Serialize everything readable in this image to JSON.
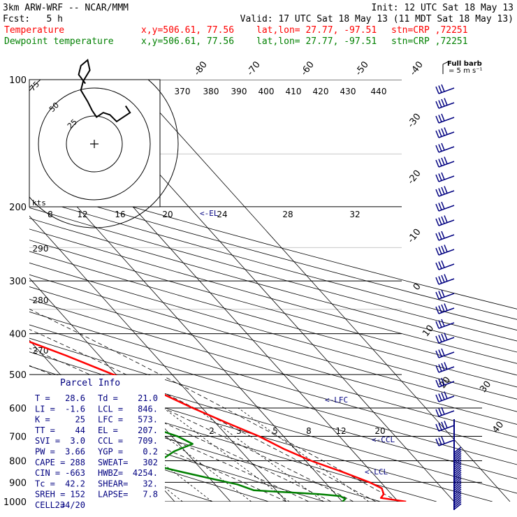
{
  "header": {
    "model": "3km ARW-WRF -- NCAR/MMM",
    "init": "Init: 12 UTC Sat 18 May 13",
    "fcst_label": "Fcst:",
    "fcst_value": "5 h",
    "valid": "Valid: 17 UTC Sat 18 May 13 (11 MDT Sat 18 May 13)",
    "line_temp": {
      "label": "Temperature",
      "xy": "x,y=506.61, 77.56",
      "latlon": "lat,lon= 27.77, -97.51",
      "stn": "stn=CRP ,72251"
    },
    "line_dew": {
      "label": "Dewpoint temperature",
      "xy": "x,y=506.61, 77.56",
      "latlon": "lat,lon= 27.77, -97.51",
      "stn": "stn=CRP ,72251"
    }
  },
  "colors": {
    "temperature": "#ff0000",
    "dewpoint": "#008000",
    "text": "#000000",
    "blue_text": "#000080",
    "grid_light": "#c8c8c8"
  },
  "barb_legend": {
    "title": "Full barb",
    "units": "= 5 m s⁻¹"
  },
  "parcel_info": {
    "title": "Parcel Info",
    "rows": [
      [
        "T  =",
        "28.6",
        "Td =",
        "21.0"
      ],
      [
        "LI =",
        "-1.6",
        "LCL =",
        "846."
      ],
      [
        "K  =",
        "25",
        "LFC =",
        "573."
      ],
      [
        "TT =",
        "44",
        "EL =",
        "207."
      ],
      [
        "SVI =",
        "3.0",
        "CCL =",
        "709."
      ],
      [
        "PW =",
        "3.66",
        "YGP =",
        "0.2"
      ],
      [
        "CAPE =",
        "288",
        "SWEAT=",
        "302"
      ],
      [
        "CIN =",
        "-663",
        "HWBZ=",
        "4254."
      ],
      [
        "Tc =",
        "42.2",
        "SHEAR=",
        "32."
      ],
      [
        "SREH =",
        "152",
        "LAPSE=",
        "7.8"
      ],
      [
        "CELL =",
        "234/20",
        "",
        ""
      ]
    ]
  },
  "annotations": {
    "el": "<-EL",
    "lfc": "<-LFC",
    "ccl": "<-CCL",
    "lcl": "<-LCL"
  },
  "hodograph": {
    "units": "kts",
    "ring_labels": [
      "25",
      "50",
      "75"
    ],
    "speed_ticks": [
      "8",
      "12",
      "16",
      "20",
      "24",
      "28",
      "32"
    ],
    "trace_kts": [
      [
        -8,
        54
      ],
      [
        -14,
        62
      ],
      [
        -12,
        70
      ],
      [
        -6,
        75
      ],
      [
        -4,
        66
      ],
      [
        -10,
        56
      ],
      [
        -12,
        48
      ],
      [
        -6,
        38
      ],
      [
        -2,
        30
      ],
      [
        2,
        24
      ],
      [
        8,
        28
      ],
      [
        14,
        26
      ],
      [
        20,
        20
      ],
      [
        26,
        24
      ],
      [
        32,
        28
      ],
      [
        28,
        34
      ]
    ]
  },
  "chart_data": {
    "type": "line",
    "title": "",
    "ylabel": "",
    "xlabel": "",
    "pressure_levels": [
      "100",
      "200",
      "300",
      "400",
      "500",
      "600",
      "700",
      "800",
      "900",
      "1000"
    ],
    "isotherm_labels": [
      "-80",
      "-70",
      "-60",
      "-50",
      "-40",
      "-30",
      "-20",
      "-10",
      "0",
      "10",
      "20",
      "30",
      "40"
    ],
    "theta_labels": [
      "370",
      "380",
      "390",
      "400",
      "410",
      "420",
      "430",
      "440"
    ],
    "theta_left_labels": [
      "290",
      "280",
      "270"
    ],
    "mixing_ratio_labels": [
      "2",
      "3",
      "5",
      "8",
      "12",
      "20"
    ],
    "series": [
      {
        "name": "Temperature",
        "points": [
          [
            1000,
            31.4
          ],
          [
            980,
            27.5
          ],
          [
            960,
            28.6
          ],
          [
            930,
            29.2
          ],
          [
            900,
            28.0
          ],
          [
            850,
            24.8
          ],
          [
            800,
            21.0
          ],
          [
            750,
            18.0
          ],
          [
            700,
            15.6
          ],
          [
            650,
            12.0
          ],
          [
            600,
            8.3
          ],
          [
            550,
            4.8
          ],
          [
            500,
            -0.5
          ],
          [
            450,
            -6.0
          ],
          [
            400,
            -12.8
          ],
          [
            350,
            -20.5
          ],
          [
            300,
            -30.0
          ],
          [
            250,
            -41.0
          ],
          [
            220,
            -49.0
          ],
          [
            200,
            -55.0
          ],
          [
            185,
            -61.0
          ],
          [
            170,
            -65.0
          ],
          [
            150,
            -70.0
          ],
          [
            130,
            -71.0
          ],
          [
            115,
            -70.5
          ],
          [
            100,
            -69.0
          ]
        ]
      },
      {
        "name": "Dewpoint temperature",
        "points": [
          [
            1000,
            20.0
          ],
          [
            985,
            21.0
          ],
          [
            970,
            20.5
          ],
          [
            960,
            17.0
          ],
          [
            940,
            6.0
          ],
          [
            910,
            4.0
          ],
          [
            880,
            0.0
          ],
          [
            850,
            -4.0
          ],
          [
            820,
            -8.0
          ],
          [
            800,
            -6.0
          ],
          [
            760,
            -2.0
          ],
          [
            730,
            2.5
          ],
          [
            700,
            1.0
          ],
          [
            650,
            -4.0
          ],
          [
            600,
            -10.0
          ],
          [
            550,
            -18.0
          ],
          [
            500,
            -24.0
          ],
          [
            450,
            -24.0
          ],
          [
            400,
            -27.0
          ],
          [
            350,
            -37.0
          ],
          [
            320,
            -42.0
          ],
          [
            300,
            -46.0
          ],
          [
            260,
            -53.0
          ],
          [
            230,
            -60.0
          ],
          [
            210,
            -64.0
          ],
          [
            200,
            -67.0
          ],
          [
            180,
            -72.0
          ],
          [
            160,
            -78.0
          ],
          [
            150,
            -88.0
          ],
          [
            140,
            -90.0
          ],
          [
            130,
            -87.0
          ],
          [
            115,
            -78.0
          ],
          [
            100,
            -70.0
          ]
        ]
      }
    ]
  }
}
